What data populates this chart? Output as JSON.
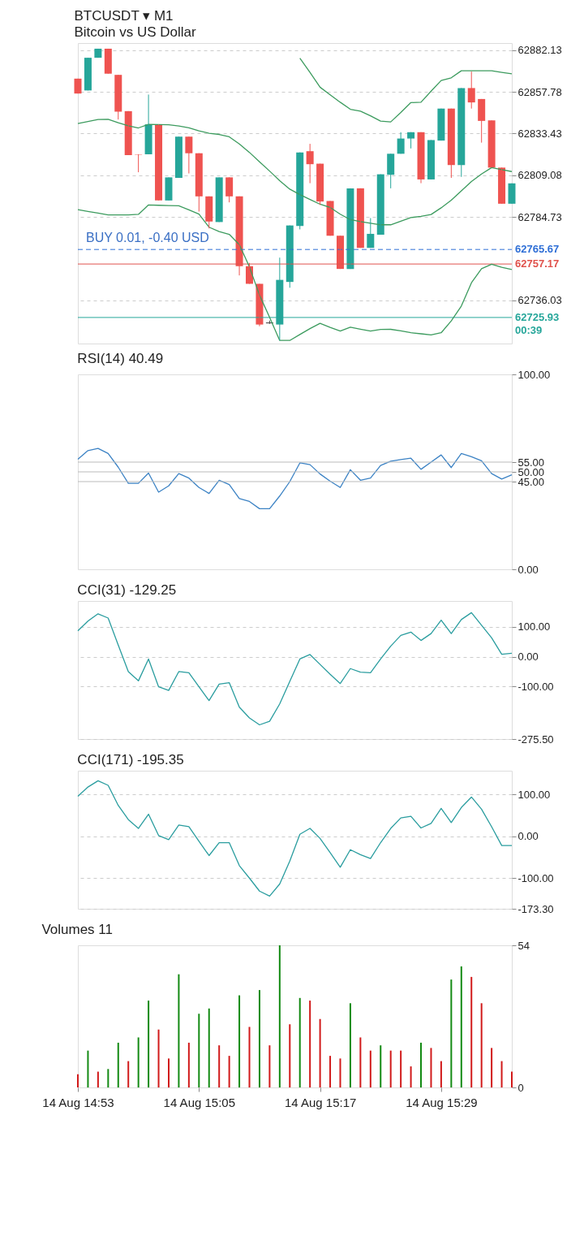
{
  "chart_data": [
    {
      "type": "candlestick",
      "title": "BTCUSDT ▾ M1",
      "subtitle": "Bitcoin vs US Dollar",
      "categories": [
        null,
        null,
        null,
        null,
        null,
        null,
        null,
        null,
        null,
        null,
        null,
        null,
        null,
        null,
        null,
        null,
        null,
        null,
        null,
        null,
        null,
        null,
        null,
        null,
        null,
        null,
        null,
        null,
        null,
        null,
        null,
        null,
        null,
        null,
        null,
        null,
        null,
        null,
        null,
        null,
        null,
        null,
        null,
        null
      ],
      "ohlc": [
        [
          62865.5,
          62865.5,
          62856.8,
          62856.8
        ],
        [
          62858.6,
          62877.7,
          62858.6,
          62877.7
        ],
        [
          62877.7,
          62883.0,
          62877.7,
          62883.0
        ],
        [
          62883.0,
          62883.0,
          62868.4,
          62868.4
        ],
        [
          62867.7,
          62867.7,
          62841.6,
          62846.2
        ],
        [
          62846.5,
          62846.5,
          62820.8,
          62820.8
        ],
        [
          62821.3,
          62821.3,
          62810.8,
          62821.1
        ],
        [
          62821.3,
          62856.2,
          62821.3,
          62838.8
        ],
        [
          62838.8,
          62838.8,
          62794.3,
          62794.3
        ],
        [
          62794.3,
          62807.8,
          62794.3,
          62807.8
        ],
        [
          62807.5,
          62831.6,
          62807.5,
          62831.6
        ],
        [
          62831.6,
          62831.6,
          62810.1,
          62821.9
        ],
        [
          62821.9,
          62821.9,
          62787.8,
          62796.7
        ],
        [
          62796.7,
          62796.7,
          62778.0,
          62782.0
        ],
        [
          62781.7,
          62807.8,
          62781.7,
          62807.8
        ],
        [
          62807.8,
          62807.8,
          62793.2,
          62796.7
        ],
        [
          62796.7,
          62796.7,
          62750.5,
          62755.9
        ],
        [
          62755.9,
          62757.8,
          62745.6,
          62745.6
        ],
        [
          62745.6,
          62745.6,
          62720.8,
          62721.8
        ],
        [
          62723.0,
          62724.1,
          62722.2,
          62722.5
        ],
        [
          62721.8,
          62760.9,
          62712.5,
          62747.9
        ],
        [
          62746.7,
          62779.7,
          62743.3,
          62779.7
        ],
        [
          62779.4,
          62822.4,
          62777.4,
          62822.4
        ],
        [
          62823.1,
          62827.4,
          62804.4,
          62815.5
        ],
        [
          62815.8,
          62815.8,
          62791.7,
          62793.7
        ],
        [
          62794.0,
          62794.0,
          62773.7,
          62773.7
        ],
        [
          62773.7,
          62773.7,
          62754.3,
          62754.3
        ],
        [
          62754.3,
          62801.4,
          62754.3,
          62801.4
        ],
        [
          62801.4,
          62801.4,
          62766.6,
          62766.6
        ],
        [
          62766.6,
          62784.0,
          62766.6,
          62774.8
        ],
        [
          62774.3,
          62809.6,
          62774.3,
          62809.6
        ],
        [
          62809.3,
          62821.6,
          62801.4,
          62821.6
        ],
        [
          62821.6,
          62834.2,
          62821.6,
          62830.5
        ],
        [
          62830.5,
          62834.2,
          62824.7,
          62834.2
        ],
        [
          62834.2,
          62834.2,
          62804.4,
          62806.6
        ],
        [
          62806.6,
          62829.6,
          62806.6,
          62829.6
        ],
        [
          62829.3,
          62848.0,
          62829.3,
          62848.0
        ],
        [
          62848.0,
          62848.0,
          62807.5,
          62815.0
        ],
        [
          62815.0,
          62860.0,
          62808.1,
          62860.0
        ],
        [
          62860.0,
          62869.6,
          62848.0,
          62851.6
        ],
        [
          62853.6,
          62853.6,
          62828.1,
          62840.8
        ],
        [
          62841.1,
          62841.1,
          62813.5,
          62813.5
        ],
        [
          62813.5,
          62813.5,
          62792.4,
          62792.4
        ],
        [
          62792.4,
          62804.3,
          62792.4,
          62804.3
        ]
      ],
      "colors": [
        "#ef5350",
        "#26a69a",
        "#26a69a",
        "#ef5350",
        "#ef5350",
        "#ef5350",
        "#ef5350",
        "#26a69a",
        "#ef5350",
        "#26a69a",
        "#26a69a",
        "#ef5350",
        "#ef5350",
        "#ef5350",
        "#26a69a",
        "#ef5350",
        "#ef5350",
        "#ef5350",
        "#ef5350",
        "#444444",
        "#26a69a",
        "#26a69a",
        "#26a69a",
        "#ef5350",
        "#ef5350",
        "#ef5350",
        "#ef5350",
        "#26a69a",
        "#ef5350",
        "#26a69a",
        "#26a69a",
        "#26a69a",
        "#26a69a",
        "#26a69a",
        "#ef5350",
        "#26a69a",
        "#26a69a",
        "#ef5350",
        "#26a69a",
        "#ef5350",
        "#ef5350",
        "#ef5350",
        "#ef5350",
        "#26a69a"
      ],
      "series": [
        {
          "type": "line",
          "color": "#3c9b5e",
          "values": [
            null,
            null,
            null,
            null,
            null,
            null,
            null,
            null,
            null,
            null,
            null,
            null,
            null,
            null,
            null,
            null,
            null,
            null,
            null,
            null,
            null,
            null,
            62877.5,
            62869.2,
            62860.5,
            62856.0,
            62851.7,
            62847.6,
            62846.5,
            62843.8,
            62840.7,
            62840.2,
            62845.7,
            62851.5,
            62851.7,
            62858.2,
            62864.4,
            62866.0,
            62870.1,
            62870.1,
            62870.1,
            62870.1,
            62869.2,
            62868.3
          ]
        },
        {
          "type": "line",
          "color": "#3c9b5e",
          "values": [
            62839.3,
            62840.4,
            62841.6,
            62841.7,
            62839.7,
            62838.0,
            62836.7,
            62838.8,
            62838.7,
            62838.5,
            62837.8,
            62836.8,
            62835.0,
            62833.6,
            62832.9,
            62831.5,
            62827.3,
            62822.4,
            62816.9,
            62811.5,
            62805.9,
            62800.9,
            62797.7,
            62794.9,
            62792.1,
            62790.2,
            62786.3,
            62783.1,
            62782.0,
            62781.0,
            62780.1,
            62780.1,
            62782.2,
            62784.3,
            62785.0,
            62786.1,
            62790.0,
            62794.5,
            62799.9,
            62805.4,
            62809.8,
            62813.5,
            62812.3,
            62811.2
          ]
        },
        {
          "type": "line",
          "color": "#3c9b5e",
          "values": [
            62788.9,
            62787.9,
            62786.9,
            62785.9,
            62785.9,
            62785.9,
            62786.2,
            62791.7,
            62791.5,
            62791.3,
            62791.2,
            62788.8,
            62786.3,
            62778.7,
            62776.1,
            62774.5,
            62768.5,
            62755.5,
            62739.0,
            62726.0,
            62712.5,
            62712.5,
            62716.0,
            62719.4,
            62722.5,
            62720.1,
            62718.0,
            62720.2,
            62719.1,
            62718.0,
            62718.9,
            62719.0,
            62718.1,
            62717.0,
            62716.4,
            62715.7,
            62717.0,
            62723.9,
            62732.6,
            62746.2,
            62754.4,
            62757.0,
            62755.3,
            62754.0
          ]
        }
      ],
      "ylim": [
        62710.7,
        62886.3
      ],
      "yticks": [
        62882.13,
        62857.78,
        62833.43,
        62809.08,
        62784.73,
        62736.03
      ],
      "ref_lines": [
        {
          "axis": "y",
          "value": 62765.67,
          "label": "62765.67",
          "color": "#2f6fd6",
          "line_style": "dashed"
        },
        {
          "axis": "y",
          "value": 62757.17,
          "label": "62757.17",
          "color": "#e0524c",
          "line_style": "solid"
        },
        {
          "axis": "y",
          "value": 62725.93,
          "label": "62725.93",
          "color": "#26a69a",
          "line_style": "solid"
        }
      ],
      "annotations": [
        {
          "text": "BUY 0.01,   -0.40 USD",
          "y": 62765.67
        },
        "00:39"
      ],
      "grid": "y",
      "tick_labels": "y"
    },
    {
      "type": "line",
      "title": "RSI(14) 40.49",
      "categories": [
        null,
        null,
        null,
        null,
        null,
        null,
        null,
        null,
        null,
        null,
        null,
        null,
        null,
        null,
        null,
        null,
        null,
        null,
        null,
        null,
        null,
        null,
        null,
        null,
        null,
        null,
        null,
        null,
        null,
        null,
        null,
        null,
        null,
        null,
        null,
        null,
        null,
        null,
        null,
        null,
        null,
        null,
        null,
        null
      ],
      "series": [
        {
          "color": "#3b82c4",
          "values": [
            56.5,
            60.9,
            62.0,
            59.4,
            52.4,
            44.1,
            44.1,
            49.4,
            39.6,
            42.8,
            49.1,
            46.8,
            42.0,
            38.9,
            45.7,
            43.5,
            36.3,
            34.8,
            31.1,
            31.1,
            37.6,
            45.0,
            54.6,
            53.7,
            48.9,
            45.2,
            42.0,
            51.1,
            45.7,
            46.8,
            53.3,
            55.5,
            56.3,
            57.0,
            51.3,
            55.0,
            58.7,
            52.2,
            59.4,
            57.8,
            55.7,
            49.1,
            46.3,
            48.5
          ]
        }
      ],
      "ylim": [
        0,
        100
      ],
      "yticks": [
        {
          "value": 0,
          "label": "0.00"
        },
        {
          "value": 45,
          "label": "45.00"
        },
        {
          "value": 50,
          "label": "50.00"
        },
        {
          "value": 55,
          "label": "55.00"
        },
        {
          "value": 100,
          "label": "100.00"
        }
      ],
      "ref_lines": [
        {
          "axis": "y",
          "value": 55,
          "color": "#bbbbbb"
        },
        {
          "axis": "y",
          "value": 50,
          "color": "#bbbbbb"
        },
        {
          "axis": "y",
          "value": 45,
          "color": "#bbbbbb"
        }
      ],
      "tick_labels": "y"
    },
    {
      "type": "line",
      "title": "CCI(31) -129.25",
      "categories": [
        null,
        null,
        null,
        null,
        null,
        null,
        null,
        null,
        null,
        null,
        null,
        null,
        null,
        null,
        null,
        null,
        null,
        null,
        null,
        null,
        null,
        null,
        null,
        null,
        null,
        null,
        null,
        null,
        null,
        null,
        null,
        null,
        null,
        null,
        null,
        null,
        null,
        null,
        null,
        null,
        null,
        null,
        null,
        null
      ],
      "series": [
        {
          "color": "#2a9d9f",
          "values": [
            86,
            119,
            143,
            129,
            39,
            -50,
            -81,
            -8,
            -101,
            -113,
            -50,
            -54,
            -101,
            -147,
            -92,
            -87,
            -169,
            -205,
            -228,
            -216,
            -158,
            -83,
            -8,
            7,
            -26,
            -59,
            -90,
            -40,
            -52,
            -54,
            -8,
            35,
            71,
            82,
            54,
            77,
            122,
            77,
            124,
            147,
            105,
            63,
            8,
            11
          ]
        }
      ],
      "ylim": [
        -275.5,
        186
      ],
      "yticks": [
        {
          "value": 100,
          "label": "100.00"
        },
        {
          "value": 0,
          "label": "0.00"
        },
        {
          "value": -100,
          "label": "-100.00"
        },
        {
          "value": -275.5,
          "label": "-275.50"
        }
      ],
      "grid": "y",
      "tick_labels": "y"
    },
    {
      "type": "line",
      "title": "CCI(171) -195.35",
      "categories": [
        null,
        null,
        null,
        null,
        null,
        null,
        null,
        null,
        null,
        null,
        null,
        null,
        null,
        null,
        null,
        null,
        null,
        null,
        null,
        null,
        null,
        null,
        null,
        null,
        null,
        null,
        null,
        null,
        null,
        null,
        null,
        null,
        null,
        null,
        null,
        null,
        null,
        null,
        null,
        null,
        null,
        null,
        null,
        null
      ],
      "series": [
        {
          "color": "#2a9d9f",
          "values": [
            96,
            118,
            133,
            122,
            74,
            40,
            19,
            53,
            2,
            -8,
            27,
            23,
            -12,
            -46,
            -15,
            -15,
            -70,
            -100,
            -131,
            -143,
            -114,
            -59,
            5,
            19,
            -5,
            -39,
            -74,
            -32,
            -44,
            -53,
            -15,
            19,
            44,
            48,
            20,
            31,
            67,
            33,
            69,
            94,
            65,
            23,
            -22,
            -22
          ]
        }
      ],
      "ylim": [
        -173.3,
        157
      ],
      "yticks": [
        {
          "value": 100,
          "label": "100.00"
        },
        {
          "value": 0,
          "label": "0.00"
        },
        {
          "value": -100,
          "label": "-100.00"
        },
        {
          "value": -173.3,
          "label": "-173.30"
        }
      ],
      "grid": "y",
      "tick_labels": "y"
    },
    {
      "type": "bar",
      "title": "Volumes 11",
      "categories": [
        "14 Aug 14:53",
        null,
        null,
        null,
        null,
        null,
        null,
        null,
        null,
        null,
        null,
        null,
        "14 Aug 15:05",
        null,
        null,
        null,
        null,
        null,
        null,
        null,
        null,
        null,
        null,
        null,
        "14 Aug 15:17",
        null,
        null,
        null,
        null,
        null,
        null,
        null,
        null,
        null,
        null,
        null,
        "14 Aug 15:29",
        null,
        null,
        null,
        null,
        null,
        null,
        null
      ],
      "values": [
        5,
        14,
        6,
        7,
        17,
        10,
        19,
        33,
        22,
        11,
        43,
        17,
        28,
        30,
        16,
        12,
        35,
        23,
        37,
        16,
        54,
        24,
        34,
        33,
        26,
        12,
        11,
        32,
        19,
        14,
        16,
        14,
        14,
        8,
        17,
        15,
        10,
        41,
        46,
        42,
        32,
        15,
        10,
        6
      ],
      "colors": [
        "#d11a1a",
        "#138a13",
        "#d11a1a",
        "#138a13",
        "#138a13",
        "#d11a1a",
        "#138a13",
        "#138a13",
        "#d11a1a",
        "#d11a1a",
        "#138a13",
        "#d11a1a",
        "#138a13",
        "#138a13",
        "#d11a1a",
        "#d11a1a",
        "#138a13",
        "#d11a1a",
        "#138a13",
        "#d11a1a",
        "#138a13",
        "#d11a1a",
        "#138a13",
        "#d11a1a",
        "#d11a1a",
        "#d11a1a",
        "#d11a1a",
        "#138a13",
        "#d11a1a",
        "#d11a1a",
        "#138a13",
        "#d11a1a",
        "#d11a1a",
        "#d11a1a",
        "#138a13",
        "#d11a1a",
        "#d11a1a",
        "#138a13",
        "#138a13",
        "#d11a1a",
        "#d11a1a",
        "#d11a1a",
        "#d11a1a",
        "#d11a1a"
      ],
      "ylim": [
        0,
        54
      ],
      "yticks": [
        0,
        54
      ]
    }
  ]
}
